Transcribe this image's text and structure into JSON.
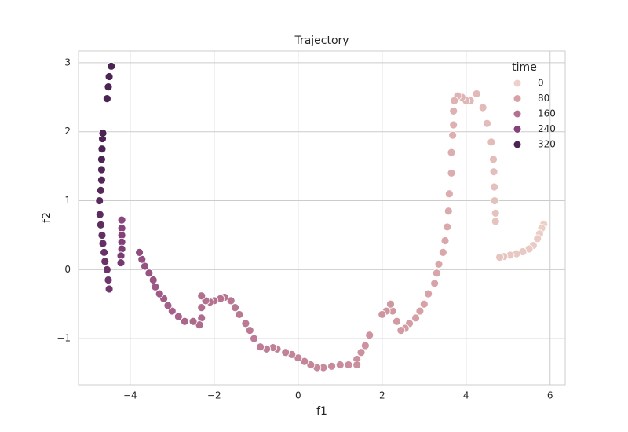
{
  "chart_data": {
    "type": "scatter",
    "title": "Trajectory",
    "x_label": "f1",
    "y_label": "f2",
    "xlim": [
      -5.23,
      6.36
    ],
    "ylim": [
      -1.67,
      3.17
    ],
    "xticks": [
      {
        "value": -4,
        "label": "−4"
      },
      {
        "value": -2,
        "label": "−2"
      },
      0,
      2,
      4,
      6
    ],
    "yticks": [
      {
        "value": -1,
        "label": "−1"
      },
      0,
      1,
      2,
      3
    ],
    "grid": true,
    "legend": {
      "title": "time",
      "position": "upper right",
      "values": [
        0,
        80,
        160,
        240,
        320
      ],
      "colors": [
        "#ecd0c9",
        "#d7a1a6",
        "#b3708f",
        "#84417a",
        "#4b2453"
      ]
    },
    "series": [
      {
        "x": [
          5.85,
          5.8,
          5.75,
          5.7,
          5.6,
          5.5,
          5.35,
          5.2,
          5.05,
          4.9,
          4.8,
          4.7,
          4.7,
          4.68,
          4.67,
          4.66,
          4.65,
          4.6,
          4.5,
          4.4,
          4.25,
          4.1,
          4.0,
          3.9,
          3.8,
          3.72,
          3.7,
          3.7,
          3.68,
          3.65,
          3.65,
          3.6,
          3.58,
          3.55,
          3.5,
          3.45,
          3.35,
          3.3,
          3.25,
          3.1,
          3.0,
          2.9,
          2.8,
          2.65,
          2.55,
          2.45,
          2.35,
          2.25,
          2.2,
          2.1,
          2.0,
          1.7,
          1.6,
          1.5,
          1.4,
          1.4,
          1.2,
          1.0,
          0.8,
          0.6,
          0.45,
          0.3,
          0.15,
          0.0,
          -0.15,
          -0.3,
          -0.5,
          -0.6,
          -0.75,
          -0.9,
          -1.05,
          -1.15,
          -1.25,
          -1.4,
          -1.5,
          -1.6,
          -1.75,
          -1.85,
          -2.0,
          -2.1,
          -2.2,
          -2.3,
          -2.3,
          -2.3,
          -2.35,
          -2.5,
          -2.7,
          -2.85,
          -3.0,
          -3.1,
          -3.2,
          -3.3,
          -3.4,
          -3.45,
          -3.55,
          -3.65,
          -3.72,
          -3.78,
          -4.2,
          -4.2,
          -4.2,
          -4.2,
          -4.2,
          -4.22,
          -4.22,
          -4.5,
          -4.52,
          -4.55,
          -4.6,
          -4.62,
          -4.65,
          -4.67,
          -4.7,
          -4.72,
          -4.73,
          -4.7,
          -4.68,
          -4.68,
          -4.68,
          -4.67,
          -4.66,
          -4.65,
          -4.55,
          -4.52,
          -4.5,
          -4.45
        ],
        "y": [
          0.66,
          0.6,
          0.52,
          0.45,
          0.35,
          0.3,
          0.26,
          0.23,
          0.21,
          0.19,
          0.18,
          0.7,
          0.82,
          1.0,
          1.2,
          1.42,
          1.6,
          1.85,
          2.12,
          2.35,
          2.55,
          2.45,
          2.45,
          2.5,
          2.52,
          2.45,
          2.3,
          2.1,
          1.95,
          1.7,
          1.4,
          1.1,
          0.85,
          0.62,
          0.42,
          0.25,
          0.08,
          -0.05,
          -0.2,
          -0.35,
          -0.5,
          -0.6,
          -0.7,
          -0.78,
          -0.85,
          -0.88,
          -0.75,
          -0.6,
          -0.5,
          -0.6,
          -0.65,
          -0.95,
          -1.1,
          -1.2,
          -1.3,
          -1.38,
          -1.38,
          -1.38,
          -1.4,
          -1.42,
          -1.42,
          -1.38,
          -1.33,
          -1.28,
          -1.23,
          -1.2,
          -1.15,
          -1.13,
          -1.15,
          -1.12,
          -1.0,
          -0.88,
          -0.78,
          -0.65,
          -0.55,
          -0.45,
          -0.4,
          -0.42,
          -0.45,
          -0.47,
          -0.45,
          -0.38,
          -0.55,
          -0.7,
          -0.8,
          -0.75,
          -0.75,
          -0.68,
          -0.6,
          -0.52,
          -0.42,
          -0.35,
          -0.25,
          -0.15,
          -0.05,
          0.05,
          0.15,
          0.25,
          0.72,
          0.6,
          0.5,
          0.4,
          0.3,
          0.2,
          0.1,
          -0.28,
          -0.15,
          0.0,
          0.12,
          0.25,
          0.38,
          0.5,
          0.65,
          0.8,
          1.0,
          1.15,
          1.3,
          1.45,
          1.6,
          1.75,
          1.9,
          1.98,
          2.48,
          2.65,
          2.8,
          2.95
        ],
        "time": [
          0,
          2,
          4,
          6,
          8,
          10,
          12,
          14,
          16,
          18,
          20,
          22,
          24,
          26,
          28,
          30,
          32,
          34,
          36,
          38,
          40,
          42,
          44,
          46,
          48,
          50,
          52,
          54,
          56,
          58,
          60,
          62,
          64,
          66,
          68,
          70,
          72,
          74,
          76,
          78,
          80,
          82,
          84,
          86,
          88,
          90,
          92,
          94,
          96,
          98,
          100,
          102,
          104,
          106,
          108,
          110,
          112,
          114,
          116,
          118,
          120,
          122,
          124,
          126,
          128,
          130,
          132,
          134,
          136,
          138,
          140,
          142,
          144,
          146,
          148,
          150,
          152,
          154,
          156,
          158,
          160,
          162,
          164,
          166,
          168,
          172,
          176,
          180,
          184,
          188,
          192,
          196,
          200,
          204,
          208,
          212,
          216,
          220,
          230,
          235,
          240,
          245,
          250,
          255,
          260,
          265,
          269,
          273,
          277,
          281,
          285,
          289,
          293,
          297,
          301,
          305,
          309,
          313,
          317,
          321,
          325,
          329,
          333,
          337,
          341,
          345
        ]
      }
    ]
  }
}
